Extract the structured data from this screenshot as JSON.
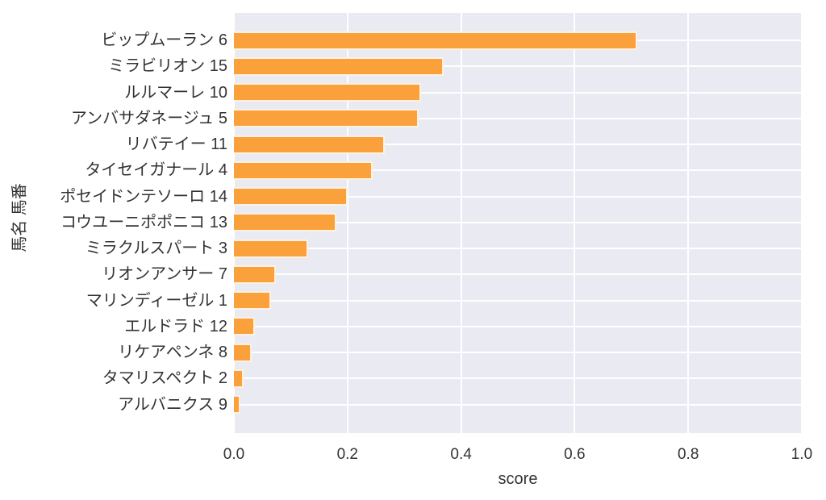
{
  "chart_data": {
    "type": "bar",
    "orientation": "horizontal",
    "title": "",
    "xlabel": "score",
    "ylabel": "馬名 馬番",
    "xlim": [
      0.0,
      1.0
    ],
    "xtick_labels": [
      "0.0",
      "0.2",
      "0.4",
      "0.6",
      "0.8",
      "1.0"
    ],
    "xtick_values": [
      0.0,
      0.2,
      0.4,
      0.6,
      0.8,
      1.0
    ],
    "grid": true,
    "legend": false,
    "categories": [
      "ビップムーラン 6",
      "ミラビリオン 15",
      "ルルマーレ 10",
      "アンバサダネージュ 5",
      "リバテイー 11",
      "タイセイガナール 4",
      "ポセイドンテソーロ 14",
      "コウユーニポポニコ 13",
      "ミラクルスパート 3",
      "リオンアンサー 7",
      "マリンディーゼル 1",
      "エルドラド 12",
      "リケアペンネ 8",
      "タマリスペクト 2",
      "アルバニクス 9"
    ],
    "values": [
      0.71,
      0.37,
      0.33,
      0.325,
      0.265,
      0.245,
      0.2,
      0.18,
      0.13,
      0.074,
      0.065,
      0.037,
      0.031,
      0.017,
      0.011
    ],
    "colors": {
      "bar": "#faa13c",
      "plot_background": "#eaeaf2",
      "gridline": "#ffffff",
      "text": "#333333",
      "figure_background": "#ffffff"
    }
  }
}
